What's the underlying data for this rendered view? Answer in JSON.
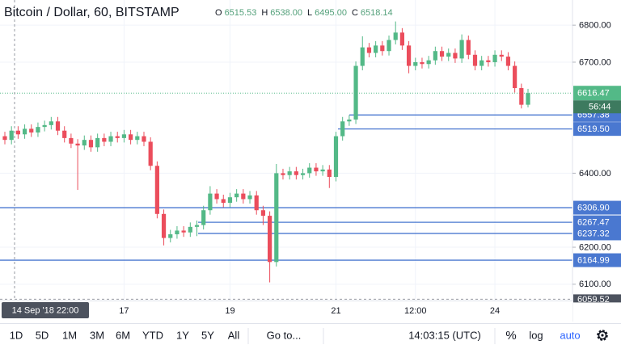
{
  "chart_data": {
    "type": "candlestick",
    "title": "Bitcoin / Dollar, 60, BITSTAMP",
    "ohlc_legend": [
      {
        "key": "O",
        "value": "6515.53"
      },
      {
        "key": "H",
        "value": "6538.00"
      },
      {
        "key": "L",
        "value": "6495.00"
      },
      {
        "key": "C",
        "value": "6518.14"
      }
    ],
    "crosshair_label": "14 Sep '18  22:00",
    "categories": [
      null,
      null,
      null,
      null,
      null,
      null,
      null,
      null,
      null,
      null,
      null,
      null,
      null,
      null,
      null,
      null,
      null,
      null,
      "17",
      null,
      null,
      null,
      null,
      null,
      null,
      null,
      null,
      null,
      null,
      null,
      null,
      null,
      null,
      null,
      "19",
      null,
      null,
      null,
      null,
      null,
      null,
      null,
      null,
      null,
      null,
      null,
      null,
      null,
      null,
      null,
      "21",
      null,
      null,
      null,
      null,
      null,
      null,
      null,
      null,
      null,
      null,
      null,
      "12:00",
      null,
      null,
      null,
      null,
      null,
      null,
      null,
      null,
      null,
      null,
      null,
      "24",
      null,
      null,
      null,
      null,
      null
    ],
    "open": [
      6500,
      6490,
      6515,
      6505,
      6520,
      6510,
      6525,
      6530,
      6540,
      6515,
      6495,
      6480,
      6475,
      6490,
      6470,
      6495,
      6485,
      6500,
      6495,
      6505,
      6490,
      6500,
      6485,
      6420,
      6290,
      6225,
      6235,
      6245,
      6240,
      6255,
      6260,
      6300,
      6345,
      6330,
      6320,
      6335,
      6345,
      6330,
      6340,
      6300,
      6285,
      6160,
      6400,
      6395,
      6405,
      6395,
      6400,
      6415,
      6405,
      6410,
      6390,
      6500,
      6540,
      6545,
      6690,
      6740,
      6725,
      6745,
      6730,
      6760,
      6780,
      6745,
      6690,
      6700,
      6695,
      6705,
      6730,
      6715,
      6725,
      6710,
      6760,
      6720,
      6690,
      6705,
      6700,
      6720,
      6715,
      6690,
      6630,
      6585
    ],
    "high": [
      6512,
      6527,
      6527,
      6532,
      6532,
      6537,
      6542,
      6552,
      6552,
      6527,
      6507,
      6492,
      6502,
      6502,
      6507,
      6507,
      6512,
      6512,
      6517,
      6517,
      6512,
      6512,
      6497,
      6432,
      6302,
      6247,
      6257,
      6257,
      6267,
      6272,
      6312,
      6365,
      6357,
      6342,
      6347,
      6357,
      6357,
      6352,
      6352,
      6312,
      6297,
      6425,
      6412,
      6417,
      6417,
      6412,
      6427,
      6427,
      6422,
      6422,
      6512,
      6552,
      6557,
      6702,
      6770,
      6752,
      6757,
      6757,
      6772,
      6810,
      6792,
      6757,
      6712,
      6712,
      6717,
      6742,
      6742,
      6737,
      6737,
      6775,
      6772,
      6732,
      6717,
      6717,
      6732,
      6732,
      6727,
      6702,
      6642,
      6628
    ],
    "low": [
      6478,
      6478,
      6493,
      6493,
      6498,
      6498,
      6513,
      6518,
      6503,
      6483,
      6468,
      6355,
      6463,
      6458,
      6458,
      6473,
      6473,
      6483,
      6483,
      6478,
      6478,
      6473,
      6408,
      6278,
      6205,
      6213,
      6223,
      6228,
      6228,
      6230,
      6248,
      6288,
      6318,
      6308,
      6308,
      6323,
      6318,
      6318,
      6288,
      6260,
      6105,
      6148,
      6383,
      6383,
      6383,
      6383,
      6388,
      6393,
      6393,
      6360,
      6378,
      6488,
      6528,
      6533,
      6678,
      6713,
      6713,
      6718,
      6718,
      6748,
      6733,
      6670,
      6678,
      6683,
      6683,
      6693,
      6703,
      6703,
      6698,
      6698,
      6708,
      6678,
      6678,
      6688,
      6688,
      6703,
      6678,
      6618,
      6575,
      6578
    ],
    "close": [
      6490,
      6515,
      6505,
      6520,
      6510,
      6525,
      6530,
      6540,
      6515,
      6495,
      6480,
      6475,
      6490,
      6470,
      6495,
      6485,
      6500,
      6495,
      6505,
      6490,
      6500,
      6485,
      6420,
      6290,
      6225,
      6235,
      6245,
      6240,
      6255,
      6260,
      6300,
      6345,
      6330,
      6320,
      6335,
      6345,
      6330,
      6340,
      6300,
      6285,
      6160,
      6400,
      6395,
      6405,
      6395,
      6400,
      6415,
      6405,
      6410,
      6390,
      6500,
      6540,
      6545,
      6690,
      6740,
      6725,
      6745,
      6730,
      6760,
      6780,
      6745,
      6690,
      6700,
      6695,
      6705,
      6730,
      6715,
      6725,
      6710,
      6760,
      6720,
      6690,
      6705,
      6700,
      6720,
      6715,
      6690,
      6630,
      6585,
      6616.47
    ],
    "up_color": "#53b987",
    "down_color": "#eb4d5c",
    "ylim": [
      6056,
      6868
    ],
    "yticks": [
      {
        "value": 6100,
        "label": "6100.00"
      },
      {
        "value": 6200,
        "label": "6200.00"
      },
      {
        "value": 6400,
        "label": "6400.00"
      },
      {
        "value": 6700,
        "label": "6700.00"
      },
      {
        "value": 6800,
        "label": "6800.00"
      }
    ],
    "grid": true,
    "price_lines": [
      {
        "value": 6557.38,
        "label": "6557.38"
      },
      {
        "value": 6519.5,
        "label": "6519.50"
      },
      {
        "value": 6306.9,
        "label": "6306.90"
      },
      {
        "value": 6267.47,
        "label": "6267.47"
      },
      {
        "value": 6237.32,
        "label": "6237.32"
      },
      {
        "value": 6164.99,
        "label": "6164.99"
      }
    ],
    "price_line_color": "#4a78d0",
    "last_price_label": "6616.47",
    "countdown": "56:44",
    "low_marker": {
      "value": 6059.52,
      "label": "6059.52"
    }
  },
  "toolbar": {
    "ranges": [
      "1D",
      "5D",
      "1M",
      "3M",
      "6M",
      "YTD",
      "1Y",
      "5Y",
      "All"
    ],
    "goto": "Go to...",
    "time": "14:03:15 (UTC)",
    "percent": "%",
    "log": "log",
    "auto": "auto"
  }
}
